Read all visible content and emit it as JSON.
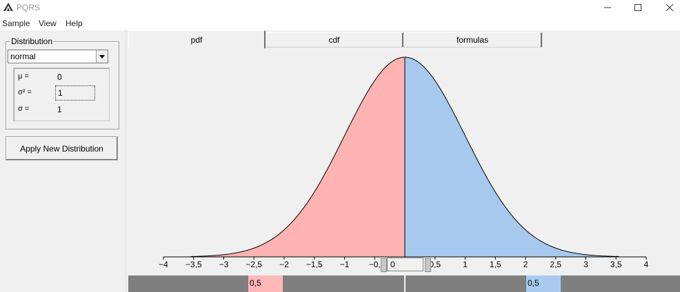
{
  "window": {
    "title": "PQRS"
  },
  "menu": [
    "Sample",
    "View",
    "Help"
  ],
  "distribution": {
    "group_label": "Distribution",
    "selected": "normal",
    "params": [
      {
        "label": "μ =",
        "value": "0"
      },
      {
        "label": "σ² =",
        "value": "1"
      },
      {
        "label": "σ =",
        "value": "1"
      }
    ],
    "apply_label": "Apply New Distribution"
  },
  "tabs": [
    {
      "label": "pdf",
      "active": true
    },
    {
      "label": "cdf",
      "active": false
    },
    {
      "label": "formulas",
      "active": false
    }
  ],
  "chart_data": {
    "type": "area",
    "distribution": "normal",
    "mu": 0,
    "sigma": 1,
    "xlim": [
      -4,
      4
    ],
    "tick_labels": [
      "−4",
      "−3,5",
      "−3",
      "−2,5",
      "−2",
      "−1,5",
      "−1",
      "−0,",
      "0,5",
      "1",
      "1,5",
      "2",
      "2,5",
      "3",
      "3,5",
      "4"
    ],
    "tick_values": [
      -4,
      -3.5,
      -3,
      -2.5,
      -2,
      -1.5,
      -1,
      -0.5,
      0.5,
      1,
      1.5,
      2,
      2.5,
      3,
      3.5,
      4
    ],
    "split_x": 0,
    "left_color": "#ffb3b3",
    "right_color": "#a7c9ee"
  },
  "quantile": {
    "value": "0"
  },
  "probabilities": {
    "left": "0,5",
    "right": "0,5"
  }
}
